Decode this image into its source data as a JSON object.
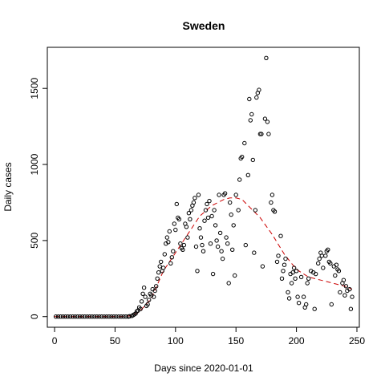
{
  "chart_data": {
    "type": "scatter",
    "title": "Sweden",
    "xlabel": "Days since 2020-01-01",
    "ylabel": "Daily cases",
    "xlim": [
      -6,
      252
    ],
    "ylim": [
      -70,
      1770
    ],
    "xticks": [
      0,
      50,
      100,
      150,
      200,
      250
    ],
    "yticks": [
      0,
      500,
      1000,
      1500
    ],
    "grid": false,
    "colors": {
      "points": "#000000",
      "trend": "#cc0000",
      "axes": "#000000"
    },
    "series": [
      {
        "style": "points",
        "points": [
          [
            1,
            0
          ],
          [
            3,
            0
          ],
          [
            5,
            0
          ],
          [
            7,
            0
          ],
          [
            9,
            0
          ],
          [
            11,
            0
          ],
          [
            13,
            0
          ],
          [
            15,
            0
          ],
          [
            17,
            0
          ],
          [
            19,
            0
          ],
          [
            21,
            0
          ],
          [
            23,
            0
          ],
          [
            25,
            0
          ],
          [
            27,
            0
          ],
          [
            29,
            0
          ],
          [
            31,
            0
          ],
          [
            33,
            0
          ],
          [
            35,
            0
          ],
          [
            37,
            0
          ],
          [
            39,
            0
          ],
          [
            41,
            0
          ],
          [
            43,
            0
          ],
          [
            45,
            0
          ],
          [
            47,
            0
          ],
          [
            49,
            0
          ],
          [
            51,
            0
          ],
          [
            53,
            0
          ],
          [
            55,
            0
          ],
          [
            57,
            0
          ],
          [
            59,
            0
          ],
          [
            61,
            0
          ],
          [
            62,
            2
          ],
          [
            64,
            5
          ],
          [
            65,
            10
          ],
          [
            66,
            15
          ],
          [
            67,
            20
          ],
          [
            68,
            35
          ],
          [
            69,
            40
          ],
          [
            70,
            60
          ],
          [
            71,
            50
          ],
          [
            72,
            100
          ],
          [
            73,
            150
          ],
          [
            74,
            190
          ],
          [
            75,
            130
          ],
          [
            76,
            70
          ],
          [
            77,
            80
          ],
          [
            78,
            110
          ],
          [
            79,
            150
          ],
          [
            80,
            140
          ],
          [
            81,
            180
          ],
          [
            82,
            130
          ],
          [
            83,
            170
          ],
          [
            84,
            200
          ],
          [
            85,
            250
          ],
          [
            86,
            290
          ],
          [
            87,
            330
          ],
          [
            88,
            360
          ],
          [
            89,
            300
          ],
          [
            90,
            320
          ],
          [
            91,
            410
          ],
          [
            92,
            480
          ],
          [
            93,
            520
          ],
          [
            94,
            490
          ],
          [
            95,
            560
          ],
          [
            96,
            350
          ],
          [
            97,
            390
          ],
          [
            98,
            430
          ],
          [
            99,
            610
          ],
          [
            100,
            570
          ],
          [
            101,
            740
          ],
          [
            102,
            650
          ],
          [
            103,
            640
          ],
          [
            104,
            480
          ],
          [
            105,
            450
          ],
          [
            106,
            440
          ],
          [
            107,
            470
          ],
          [
            108,
            610
          ],
          [
            109,
            590
          ],
          [
            110,
            520
          ],
          [
            111,
            680
          ],
          [
            112,
            640
          ],
          [
            113,
            700
          ],
          [
            114,
            730
          ],
          [
            115,
            750
          ],
          [
            116,
            780
          ],
          [
            117,
            460
          ],
          [
            118,
            300
          ],
          [
            119,
            800
          ],
          [
            120,
            580
          ],
          [
            121,
            520
          ],
          [
            122,
            470
          ],
          [
            123,
            430
          ],
          [
            124,
            630
          ],
          [
            125,
            700
          ],
          [
            126,
            740
          ],
          [
            127,
            650
          ],
          [
            128,
            760
          ],
          [
            129,
            480
          ],
          [
            130,
            660
          ],
          [
            131,
            280
          ],
          [
            132,
            700
          ],
          [
            133,
            600
          ],
          [
            134,
            500
          ],
          [
            135,
            460
          ],
          [
            136,
            800
          ],
          [
            137,
            550
          ],
          [
            138,
            430
          ],
          [
            139,
            380
          ],
          [
            140,
            800
          ],
          [
            141,
            810
          ],
          [
            142,
            520
          ],
          [
            143,
            480
          ],
          [
            144,
            220
          ],
          [
            145,
            750
          ],
          [
            146,
            670
          ],
          [
            147,
            440
          ],
          [
            148,
            600
          ],
          [
            149,
            270
          ],
          [
            150,
            800
          ],
          [
            152,
            700
          ],
          [
            153,
            900
          ],
          [
            154,
            1040
          ],
          [
            155,
            1050
          ],
          [
            157,
            1140
          ],
          [
            158,
            470
          ],
          [
            160,
            930
          ],
          [
            161,
            1430
          ],
          [
            162,
            1290
          ],
          [
            163,
            1330
          ],
          [
            164,
            1030
          ],
          [
            165,
            420
          ],
          [
            166,
            700
          ],
          [
            167,
            1440
          ],
          [
            168,
            1470
          ],
          [
            169,
            1490
          ],
          [
            170,
            1200
          ],
          [
            171,
            1200
          ],
          [
            172,
            330
          ],
          [
            174,
            1300
          ],
          [
            175,
            1700
          ],
          [
            176,
            1280
          ],
          [
            177,
            1200
          ],
          [
            179,
            750
          ],
          [
            180,
            800
          ],
          [
            181,
            700
          ],
          [
            182,
            690
          ],
          [
            184,
            360
          ],
          [
            185,
            400
          ],
          [
            187,
            530
          ],
          [
            188,
            250
          ],
          [
            189,
            300
          ],
          [
            190,
            340
          ],
          [
            191,
            380
          ],
          [
            193,
            160
          ],
          [
            194,
            120
          ],
          [
            195,
            280
          ],
          [
            196,
            220
          ],
          [
            197,
            290
          ],
          [
            198,
            320
          ],
          [
            199,
            250
          ],
          [
            200,
            300
          ],
          [
            201,
            130
          ],
          [
            202,
            90
          ],
          [
            204,
            260
          ],
          [
            206,
            130
          ],
          [
            207,
            60
          ],
          [
            208,
            80
          ],
          [
            209,
            220
          ],
          [
            210,
            250
          ],
          [
            212,
            300
          ],
          [
            214,
            290
          ],
          [
            215,
            50
          ],
          [
            216,
            280
          ],
          [
            218,
            350
          ],
          [
            219,
            380
          ],
          [
            220,
            420
          ],
          [
            221,
            400
          ],
          [
            222,
            320
          ],
          [
            224,
            400
          ],
          [
            225,
            430
          ],
          [
            226,
            440
          ],
          [
            227,
            360
          ],
          [
            228,
            350
          ],
          [
            229,
            80
          ],
          [
            231,
            330
          ],
          [
            232,
            270
          ],
          [
            233,
            340
          ],
          [
            234,
            310
          ],
          [
            235,
            300
          ],
          [
            236,
            160
          ],
          [
            238,
            220
          ],
          [
            239,
            240
          ],
          [
            240,
            140
          ],
          [
            241,
            200
          ],
          [
            242,
            170
          ],
          [
            244,
            180
          ],
          [
            245,
            50
          ],
          [
            246,
            130
          ]
        ]
      },
      {
        "style": "dashed-line",
        "points": [
          [
            0,
            0
          ],
          [
            55,
            0
          ],
          [
            63,
            5
          ],
          [
            70,
            30
          ],
          [
            80,
            120
          ],
          [
            90,
            300
          ],
          [
            100,
            420
          ],
          [
            110,
            540
          ],
          [
            120,
            660
          ],
          [
            130,
            730
          ],
          [
            140,
            770
          ],
          [
            145,
            780
          ],
          [
            150,
            780
          ],
          [
            155,
            770
          ],
          [
            160,
            730
          ],
          [
            170,
            650
          ],
          [
            180,
            540
          ],
          [
            190,
            410
          ],
          [
            200,
            310
          ],
          [
            210,
            260
          ],
          [
            220,
            240
          ],
          [
            230,
            220
          ],
          [
            240,
            200
          ],
          [
            246,
            180
          ]
        ]
      }
    ]
  }
}
